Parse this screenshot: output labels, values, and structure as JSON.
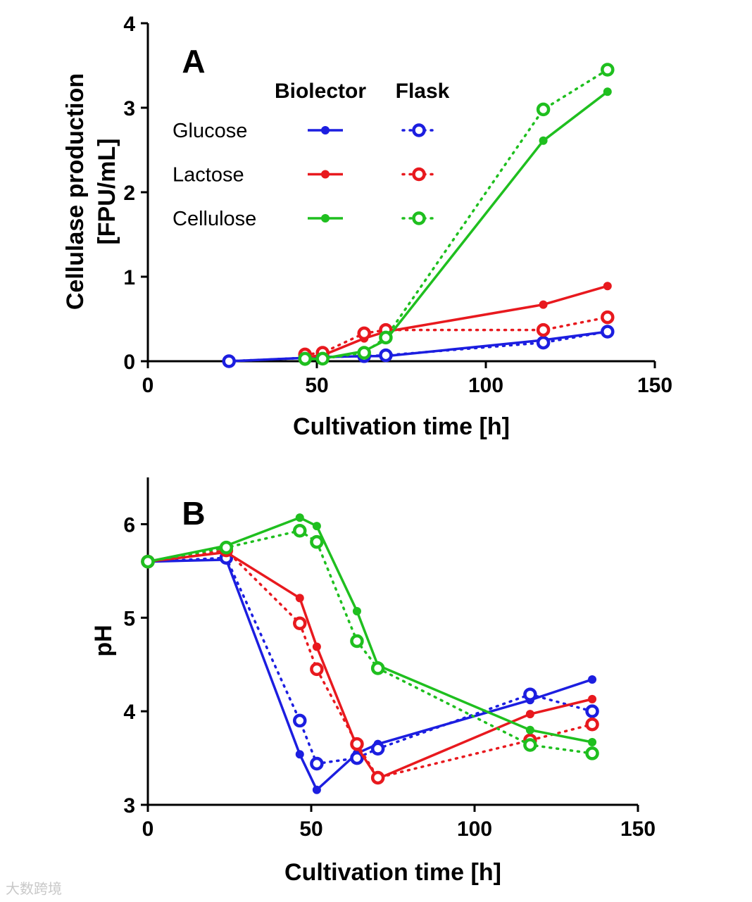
{
  "colors": {
    "glucose": "#1c1ee0",
    "lactose": "#e8191e",
    "cellulose": "#1fbf1f"
  },
  "watermark": "大数跨境",
  "chart_data": [
    {
      "type": "line",
      "panel_label": "A",
      "xlabel": "Cultivation time [h]",
      "ylabel_lines": [
        "Cellulase production",
        "[FPU/mL]"
      ],
      "xlim": [
        0,
        150
      ],
      "ylim": [
        0,
        4
      ],
      "xticks": [
        "0",
        "50",
        "100",
        "150"
      ],
      "yticks": [
        "0",
        "1",
        "2",
        "3",
        "4"
      ],
      "legend": {
        "col_headers": [
          "Biolector",
          "Flask"
        ],
        "rows": [
          "Glucose",
          "Lactose",
          "Cellulose"
        ],
        "placement": "top-left"
      },
      "x": [
        24,
        46.5,
        51.7,
        64,
        70.4,
        117,
        136
      ],
      "series": [
        {
          "name": "Glucose Biolector",
          "color_key": "glucose",
          "style": "solid",
          "values": [
            0,
            0.04,
            0.05,
            0.06,
            0.06,
            0.25,
            0.35
          ]
        },
        {
          "name": "Glucose Flask",
          "color_key": "glucose",
          "style": "dotted",
          "values": [
            0,
            0.04,
            0.05,
            0.06,
            0.07,
            0.22,
            0.35
          ]
        },
        {
          "name": "Lactose Biolector",
          "color_key": "lactose",
          "style": "solid",
          "values": [
            null,
            0.05,
            0.07,
            0.27,
            0.35,
            0.67,
            0.89
          ]
        },
        {
          "name": "Lactose Flask",
          "color_key": "lactose",
          "style": "dotted",
          "values": [
            null,
            0.08,
            0.1,
            0.33,
            0.37,
            0.37,
            0.52
          ]
        },
        {
          "name": "Cellulose Biolector",
          "color_key": "cellulose",
          "style": "solid",
          "values": [
            null,
            0.02,
            0.03,
            0.12,
            0.25,
            2.61,
            3.19
          ]
        },
        {
          "name": "Cellulose Flask",
          "color_key": "cellulose",
          "style": "dotted",
          "values": [
            null,
            0.03,
            0.03,
            0.1,
            0.28,
            2.98,
            3.45
          ]
        }
      ]
    },
    {
      "type": "line",
      "panel_label": "B",
      "xlabel": "Cultivation time [h]",
      "ylabel_lines": [
        "pH"
      ],
      "xlim": [
        0,
        150
      ],
      "ylim": [
        3,
        6.5
      ],
      "xticks": [
        "0",
        "50",
        "100",
        "150"
      ],
      "yticks": [
        "3",
        "4",
        "5",
        "6"
      ],
      "x": [
        0,
        24,
        46.5,
        51.7,
        64,
        70.4,
        117,
        136
      ],
      "series": [
        {
          "name": "Glucose Biolector",
          "color_key": "glucose",
          "style": "solid",
          "values": [
            5.6,
            5.62,
            3.54,
            3.16,
            3.55,
            3.65,
            4.12,
            4.34
          ]
        },
        {
          "name": "Glucose Flask",
          "color_key": "glucose",
          "style": "dotted",
          "values": [
            5.6,
            5.64,
            3.9,
            3.44,
            3.5,
            3.6,
            4.18,
            4.0
          ]
        },
        {
          "name": "Lactose Biolector",
          "color_key": "lactose",
          "style": "solid",
          "values": [
            5.6,
            5.7,
            5.21,
            4.69,
            3.62,
            3.28,
            3.97,
            4.13
          ]
        },
        {
          "name": "Lactose Flask",
          "color_key": "lactose",
          "style": "dotted",
          "values": [
            5.6,
            5.72,
            4.94,
            4.45,
            3.65,
            3.29,
            3.69,
            3.86
          ]
        },
        {
          "name": "Cellulose Biolector",
          "color_key": "cellulose",
          "style": "solid",
          "values": [
            5.6,
            5.77,
            6.07,
            5.98,
            5.07,
            4.49,
            3.8,
            3.67
          ]
        },
        {
          "name": "Cellulose Flask",
          "color_key": "cellulose",
          "style": "dotted",
          "values": [
            5.6,
            5.75,
            5.93,
            5.81,
            4.75,
            4.46,
            3.64,
            3.55
          ]
        }
      ]
    }
  ]
}
